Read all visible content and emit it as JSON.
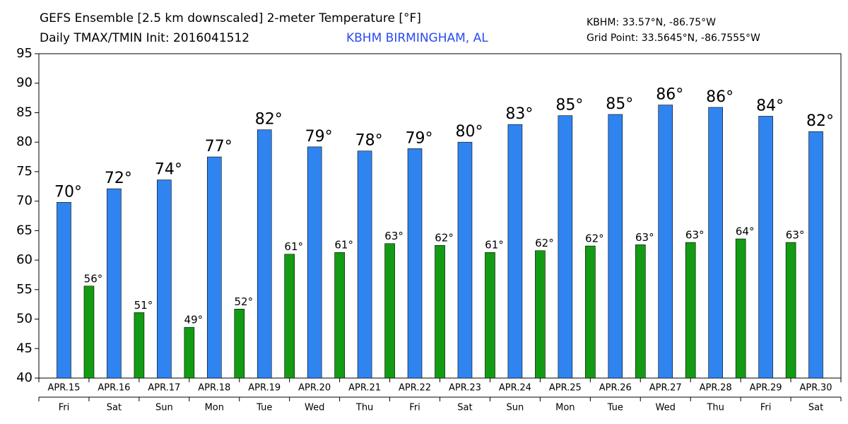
{
  "chart_data": {
    "type": "bar",
    "title": "GEFS Ensemble [2.5 km downscaled] 2-meter Temperature [°F]",
    "subtitle": "Daily TMAX/TMIN Init: 2016041512",
    "location": "KBHM BIRMINGHAM, AL",
    "station_coords": "KBHM: 33.57°N, -86.75°W",
    "grid_point": "Grid Point: 33.5645°N, -86.7555°W",
    "categories": [
      "APR.15",
      "APR.16",
      "APR.17",
      "APR.18",
      "APR.19",
      "APR.20",
      "APR.21",
      "APR.22",
      "APR.23",
      "APR.24",
      "APR.25",
      "APR.26",
      "APR.27",
      "APR.28",
      "APR.29",
      "APR.30"
    ],
    "weekdays": [
      "Fri",
      "Sat",
      "Sun",
      "Mon",
      "Tue",
      "Wed",
      "Thu",
      "Fri",
      "Sat",
      "Sun",
      "Mon",
      "Tue",
      "Wed",
      "Thu",
      "Fri",
      "Sat"
    ],
    "series": [
      {
        "color": "#2f84f0",
        "values": [
          69.8,
          72.1,
          73.6,
          77.5,
          82.1,
          79.2,
          78.5,
          78.9,
          80.0,
          83.0,
          84.5,
          84.7,
          86.3,
          85.9,
          84.4,
          81.8
        ],
        "value_labels": [
          "70°",
          "72°",
          "74°",
          "77°",
          "82°",
          "79°",
          "78°",
          "79°",
          "80°",
          "83°",
          "85°",
          "85°",
          "86°",
          "86°",
          "84°",
          "82°"
        ]
      },
      {
        "color": "#139b13",
        "values": [
          55.6,
          51.1,
          48.6,
          51.7,
          61.0,
          61.3,
          62.8,
          62.5,
          61.3,
          61.6,
          62.4,
          62.6,
          63.0,
          63.6,
          63.0,
          null
        ],
        "value_labels": [
          "56°",
          "51°",
          "49°",
          "52°",
          "61°",
          "61°",
          "63°",
          "62°",
          "61°",
          "62°",
          "62°",
          "63°",
          "63°",
          "64°",
          "63°",
          null
        ]
      }
    ],
    "ylim": [
      40,
      95
    ],
    "yticks": [
      40,
      45,
      50,
      55,
      60,
      65,
      70,
      75,
      80,
      85,
      90,
      95
    ]
  }
}
